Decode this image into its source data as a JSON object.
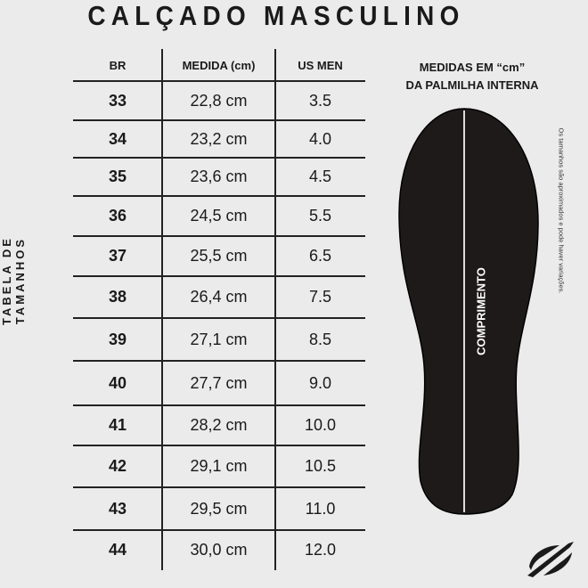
{
  "title": "CALÇADO MASCULINO",
  "side_label": "TABELA DE TAMANHOS",
  "table": {
    "headers": [
      "BR",
      "MEDIDA (cm)",
      "US MEN"
    ],
    "rows": [
      [
        "33",
        "22,8 cm",
        "3.5"
      ],
      [
        "34",
        "23,2 cm",
        "4.0"
      ],
      [
        "35",
        "23,6 cm",
        "4.5"
      ],
      [
        "36",
        "24,5 cm",
        "5.5"
      ],
      [
        "37",
        "25,5 cm",
        "6.5"
      ],
      [
        "38",
        "26,4 cm",
        "7.5"
      ],
      [
        "39",
        "27,1 cm",
        "8.5"
      ],
      [
        "40",
        "27,7 cm",
        "9.0"
      ],
      [
        "41",
        "28,2 cm",
        "10.0"
      ],
      [
        "42",
        "29,1 cm",
        "10.5"
      ],
      [
        "43",
        "29,5 cm",
        "11.0"
      ],
      [
        "44",
        "30,0 cm",
        "12.0"
      ]
    ]
  },
  "insole": {
    "title_line1": "MEDIDAS EM “cm”",
    "title_line2": "DA PALMILHA INTERNA",
    "length_label": "COMPRIMENTO",
    "disclaimer": "Os tamanhos são aproximados e pode haver variações.",
    "color": "#1f1a1a"
  },
  "logo_icon": "brand-logo-icon"
}
